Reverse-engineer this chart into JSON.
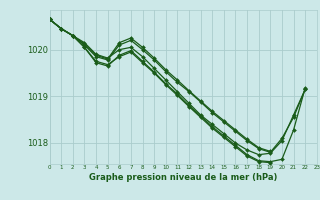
{
  "bg_color": "#cce8e8",
  "grid_color": "#aacccc",
  "line_color": "#1a5c1a",
  "marker_color": "#1a5c1a",
  "title": "Graphe pression niveau de la mer (hPa)",
  "xlim": [
    0,
    23
  ],
  "ylim": [
    1017.55,
    1020.85
  ],
  "yticks": [
    1018,
    1019,
    1020
  ],
  "xticks": [
    0,
    1,
    2,
    3,
    4,
    5,
    6,
    7,
    8,
    9,
    10,
    11,
    12,
    13,
    14,
    15,
    16,
    17,
    18,
    19,
    20,
    21,
    22,
    23
  ],
  "series": [
    [
      1020.65,
      1020.45,
      1020.3,
      1020.15,
      1019.9,
      1019.82,
      1020.0,
      1020.05,
      1019.85,
      1019.6,
      1019.35,
      1019.1,
      1018.85,
      1018.6,
      1018.4,
      1018.2,
      1018.0,
      1017.85,
      1017.75,
      1017.78,
      1018.05,
      1018.6,
      1019.15,
      null
    ],
    [
      1020.65,
      1020.45,
      1020.3,
      1020.1,
      1019.85,
      1019.78,
      1020.1,
      1020.2,
      1020.0,
      1019.78,
      1019.53,
      1019.3,
      1019.1,
      1018.88,
      1018.65,
      1018.45,
      1018.25,
      1018.05,
      1017.88,
      1017.8,
      1018.1,
      1018.55,
      1019.15,
      null
    ],
    [
      1020.65,
      1020.45,
      1020.3,
      1020.12,
      1019.88,
      1019.8,
      1020.15,
      1020.25,
      1020.05,
      1019.82,
      1019.57,
      1019.35,
      1019.12,
      1018.9,
      1018.68,
      1018.48,
      1018.28,
      1018.08,
      1017.9,
      1017.82,
      null,
      null,
      null,
      null
    ],
    [
      1020.65,
      1020.45,
      1020.3,
      1020.05,
      1019.75,
      1019.68,
      1019.85,
      1019.95,
      1019.72,
      1019.5,
      1019.25,
      1019.02,
      1018.78,
      1018.55,
      1018.32,
      1018.12,
      1017.92,
      1017.72,
      1017.6,
      1017.58,
      null,
      null,
      null,
      null
    ],
    [
      1020.65,
      1020.45,
      1020.3,
      1020.05,
      1019.72,
      1019.65,
      1019.88,
      1019.98,
      1019.75,
      1019.52,
      1019.27,
      1019.05,
      1018.8,
      1018.58,
      1018.35,
      1018.15,
      1017.95,
      1017.75,
      1017.62,
      1017.6,
      1017.65,
      1018.28,
      1019.18,
      null
    ]
  ]
}
